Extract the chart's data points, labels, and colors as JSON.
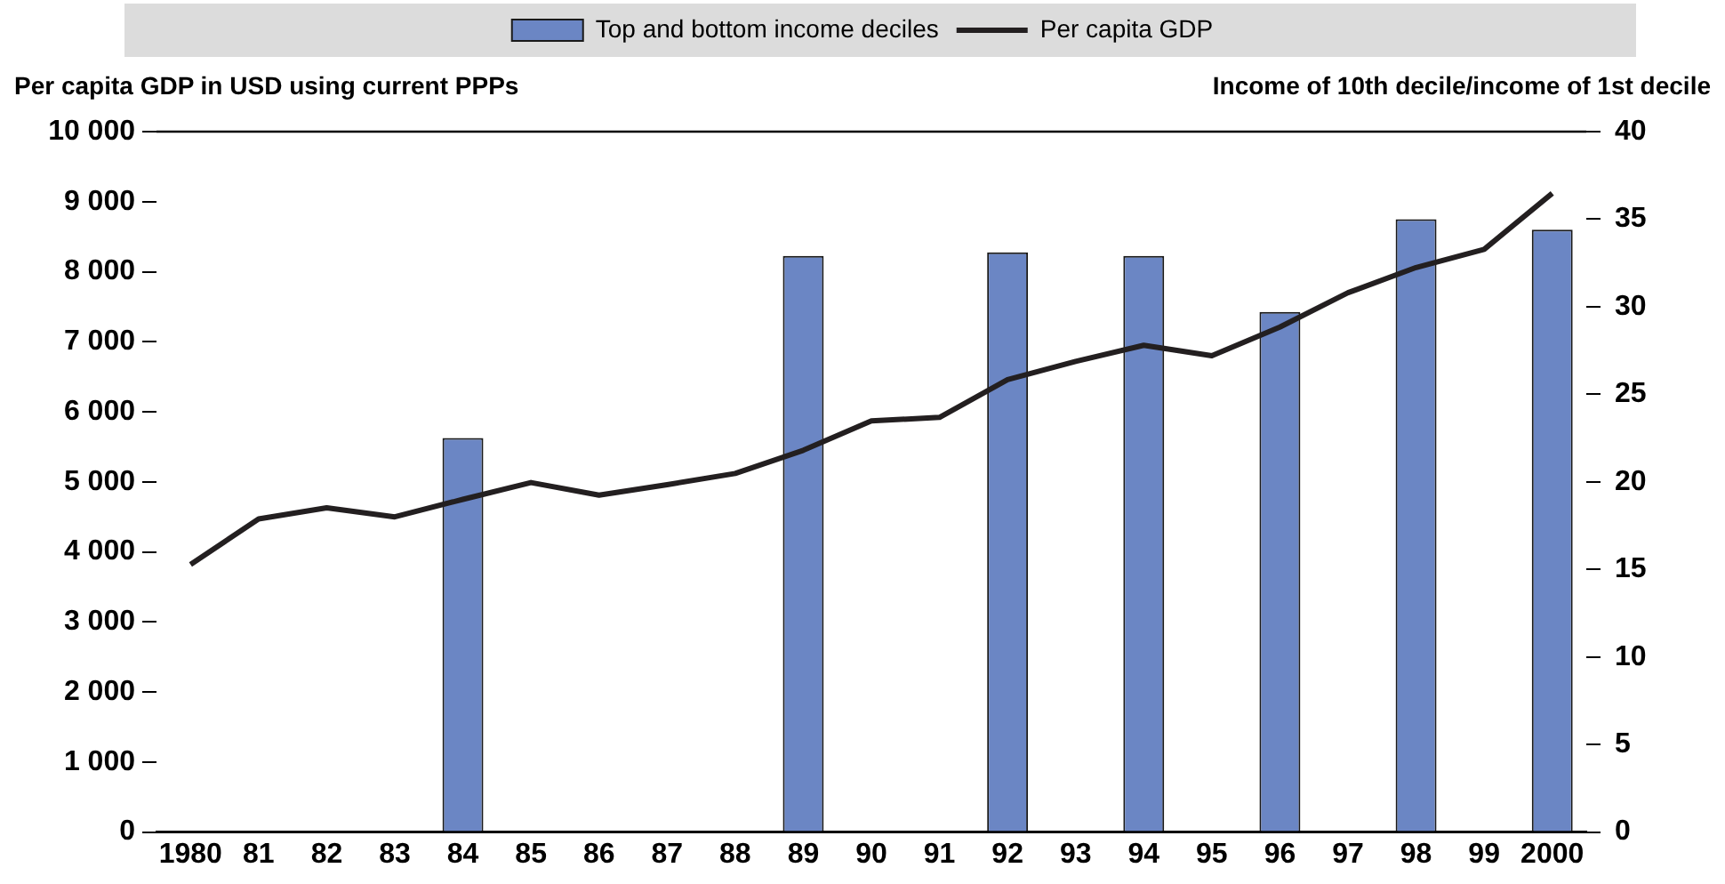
{
  "chart_data": {
    "type": "bar",
    "ylabel": "Per capita GDP in USD using current PPPs",
    "y2label": "Income of 10th decile/income of 1st decile",
    "categories": [
      "1980",
      "81",
      "82",
      "83",
      "84",
      "85",
      "86",
      "87",
      "88",
      "89",
      "90",
      "91",
      "92",
      "93",
      "94",
      "95",
      "96",
      "97",
      "98",
      "99",
      "2000"
    ],
    "series": [
      {
        "name": "Top and bottom income deciles",
        "axis": "y2",
        "color": "#6b86c4",
        "values": [
          null,
          null,
          null,
          null,
          22.5,
          null,
          null,
          null,
          null,
          32.9,
          null,
          null,
          33.1,
          null,
          32.9,
          null,
          29.7,
          null,
          35.0,
          null,
          34.4
        ]
      },
      {
        "name": "Per capita GDP",
        "type": "line",
        "color": "#231f20",
        "values": [
          3820,
          4470,
          4630,
          4500,
          4750,
          4990,
          4810,
          4960,
          5120,
          5450,
          5870,
          5920,
          6460,
          6720,
          6950,
          6800,
          7210,
          7700,
          8060,
          8320,
          9120
        ]
      }
    ],
    "ylim": [
      0,
      10000
    ],
    "yticks": [
      0,
      {
        "value": 1000,
        "label": "1 000"
      },
      {
        "value": 2000,
        "label": "2 000"
      },
      {
        "value": 3000,
        "label": "3 000"
      },
      {
        "value": 4000,
        "label": "4 000"
      },
      {
        "value": 5000,
        "label": "5 000"
      },
      {
        "value": 6000,
        "label": "6 000"
      },
      {
        "value": 7000,
        "label": "7 000"
      },
      {
        "value": 8000,
        "label": "8 000"
      },
      {
        "value": 9000,
        "label": "9 000"
      },
      {
        "value": 10000,
        "label": "10 000"
      }
    ],
    "y2lim": [
      0,
      40
    ],
    "y2ticks": [
      0,
      5,
      10,
      15,
      20,
      25,
      30,
      35,
      40
    ],
    "legend": "top",
    "grid": false,
    "marker": "none",
    "line_style": "solid"
  }
}
